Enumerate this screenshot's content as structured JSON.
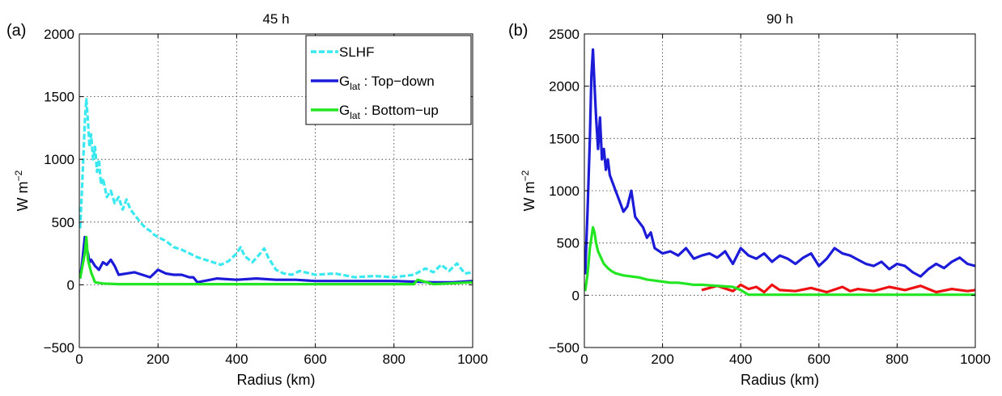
{
  "chart_data": [
    {
      "panel_label": "(a)",
      "type": "line",
      "title": "45 h",
      "xlabel": "Radius (km)",
      "ylabel": "W m",
      "ylabel_sup": "−2",
      "xlim": [
        0,
        1000
      ],
      "ylim": [
        -500,
        2000
      ],
      "xticks": [
        0,
        200,
        400,
        600,
        800,
        1000
      ],
      "yticks": [
        -500,
        0,
        500,
        1000,
        1500,
        2000
      ],
      "xtick_labels": [
        "0",
        "200",
        "400",
        "600",
        "800",
        "1000"
      ],
      "ytick_labels": [
        "−500",
        "0",
        "500",
        "1000",
        "1500",
        "2000"
      ],
      "grid": true,
      "legend": {
        "position": "top-right",
        "entries": [
          {
            "text": "SLHF",
            "sub": "",
            "suffix": ""
          },
          {
            "text": "G",
            "sub": "lat",
            "suffix": " : Top−down"
          },
          {
            "text": "G",
            "sub": "lat",
            "suffix": " : Bottom−up"
          }
        ]
      },
      "series": [
        {
          "name": "SLHF",
          "color": "#3ae8f0",
          "style": "dashed",
          "x": [
            2,
            6,
            10,
            14,
            18,
            22,
            26,
            30,
            35,
            40,
            45,
            50,
            55,
            60,
            70,
            80,
            90,
            100,
            110,
            120,
            130,
            140,
            150,
            160,
            170,
            180,
            190,
            200,
            220,
            240,
            260,
            280,
            300,
            320,
            340,
            360,
            380,
            400,
            410,
            420,
            440,
            460,
            470,
            480,
            500,
            520,
            540,
            560,
            600,
            650,
            700,
            750,
            800,
            850,
            880,
            900,
            920,
            940,
            960,
            980,
            1000
          ],
          "y": [
            450,
            700,
            1000,
            1300,
            1480,
            1300,
            1100,
            1200,
            1000,
            1100,
            900,
            1000,
            800,
            850,
            700,
            750,
            650,
            700,
            600,
            680,
            600,
            560,
            520,
            480,
            450,
            430,
            400,
            380,
            350,
            300,
            280,
            250,
            220,
            200,
            180,
            160,
            190,
            250,
            300,
            230,
            180,
            250,
            290,
            220,
            120,
            90,
            80,
            110,
            80,
            90,
            60,
            70,
            60,
            80,
            130,
            100,
            160,
            110,
            170,
            90,
            100
          ]
        },
        {
          "name": "Top−down",
          "color": "#1c1cd8",
          "style": "solid",
          "x": [
            2,
            8,
            14,
            18,
            22,
            26,
            30,
            40,
            50,
            60,
            70,
            80,
            90,
            100,
            120,
            140,
            160,
            180,
            200,
            220,
            240,
            260,
            280,
            290,
            300,
            350,
            400,
            450,
            500,
            550,
            600,
            700,
            800,
            900,
            950,
            1000
          ],
          "y": [
            50,
            200,
            380,
            300,
            250,
            180,
            200,
            150,
            120,
            180,
            160,
            200,
            150,
            80,
            90,
            100,
            80,
            60,
            120,
            90,
            80,
            80,
            60,
            60,
            20,
            50,
            40,
            50,
            40,
            40,
            30,
            30,
            30,
            20,
            20,
            30
          ]
        },
        {
          "name": "Bottom−up",
          "color": "#22e622",
          "style": "solid",
          "x": [
            2,
            8,
            14,
            18,
            22,
            26,
            30,
            40,
            60,
            100,
            200,
            300,
            400,
            500,
            600,
            700,
            800,
            850,
            860,
            900,
            1000
          ],
          "y": [
            50,
            150,
            250,
            380,
            200,
            150,
            100,
            20,
            10,
            5,
            5,
            5,
            5,
            5,
            5,
            5,
            5,
            5,
            40,
            5,
            20
          ]
        }
      ]
    },
    {
      "panel_label": "(b)",
      "type": "line",
      "title": "90 h",
      "xlabel": "Radius (km)",
      "ylabel": "W m",
      "ylabel_sup": "−2",
      "xlim": [
        0,
        1000
      ],
      "ylim": [
        -500,
        2500
      ],
      "xticks": [
        0,
        200,
        400,
        600,
        800,
        1000
      ],
      "yticks": [
        -500,
        0,
        500,
        1000,
        1500,
        2000,
        2500
      ],
      "xtick_labels": [
        "0",
        "200",
        "400",
        "600",
        "800",
        "1000"
      ],
      "ytick_labels": [
        "−500",
        "0",
        "500",
        "1000",
        "1500",
        "2000",
        "2500"
      ],
      "grid": true,
      "series": [
        {
          "name": "Top−down",
          "color": "#1c1cd8",
          "style": "solid",
          "x": [
            2,
            8,
            14,
            18,
            22,
            26,
            30,
            35,
            40,
            45,
            50,
            55,
            60,
            65,
            70,
            80,
            90,
            100,
            110,
            120,
            130,
            140,
            150,
            160,
            170,
            180,
            200,
            220,
            240,
            260,
            280,
            300,
            320,
            340,
            360,
            380,
            400,
            420,
            440,
            460,
            480,
            500,
            520,
            540,
            560,
            580,
            600,
            620,
            640,
            660,
            680,
            700,
            720,
            740,
            760,
            780,
            800,
            820,
            840,
            860,
            880,
            900,
            920,
            940,
            960,
            980,
            1000
          ],
          "y": [
            200,
            800,
            1500,
            2100,
            2350,
            2000,
            1700,
            1400,
            1700,
            1300,
            1400,
            1200,
            1300,
            1150,
            1100,
            1000,
            900,
            800,
            850,
            1000,
            750,
            700,
            650,
            550,
            600,
            450,
            400,
            420,
            380,
            450,
            350,
            380,
            400,
            360,
            420,
            300,
            450,
            380,
            350,
            400,
            320,
            380,
            350,
            300,
            360,
            400,
            280,
            350,
            450,
            400,
            380,
            340,
            300,
            280,
            320,
            250,
            300,
            280,
            220,
            180,
            250,
            300,
            260,
            320,
            360,
            300,
            280
          ]
        },
        {
          "name": "Red",
          "color": "#ee1111",
          "style": "solid",
          "x": [
            300,
            340,
            380,
            400,
            420,
            440,
            460,
            480,
            500,
            540,
            580,
            620,
            660,
            680,
            700,
            740,
            780,
            820,
            860,
            900,
            940,
            980,
            1000
          ],
          "y": [
            50,
            90,
            40,
            100,
            60,
            80,
            30,
            100,
            50,
            40,
            70,
            30,
            80,
            40,
            60,
            40,
            80,
            50,
            90,
            30,
            60,
            40,
            50
          ]
        },
        {
          "name": "Bottom−up",
          "color": "#22e622",
          "style": "solid",
          "x": [
            2,
            8,
            14,
            18,
            22,
            26,
            30,
            35,
            40,
            50,
            60,
            70,
            80,
            90,
            100,
            120,
            140,
            160,
            180,
            200,
            220,
            240,
            260,
            280,
            300,
            340,
            380,
            400,
            420,
            500,
            600,
            700,
            800,
            900,
            1000
          ],
          "y": [
            40,
            200,
            450,
            550,
            650,
            600,
            500,
            420,
            380,
            300,
            260,
            230,
            210,
            200,
            190,
            180,
            170,
            150,
            140,
            130,
            120,
            120,
            110,
            100,
            100,
            90,
            80,
            50,
            5,
            5,
            5,
            5,
            5,
            5,
            5
          ]
        }
      ]
    }
  ]
}
